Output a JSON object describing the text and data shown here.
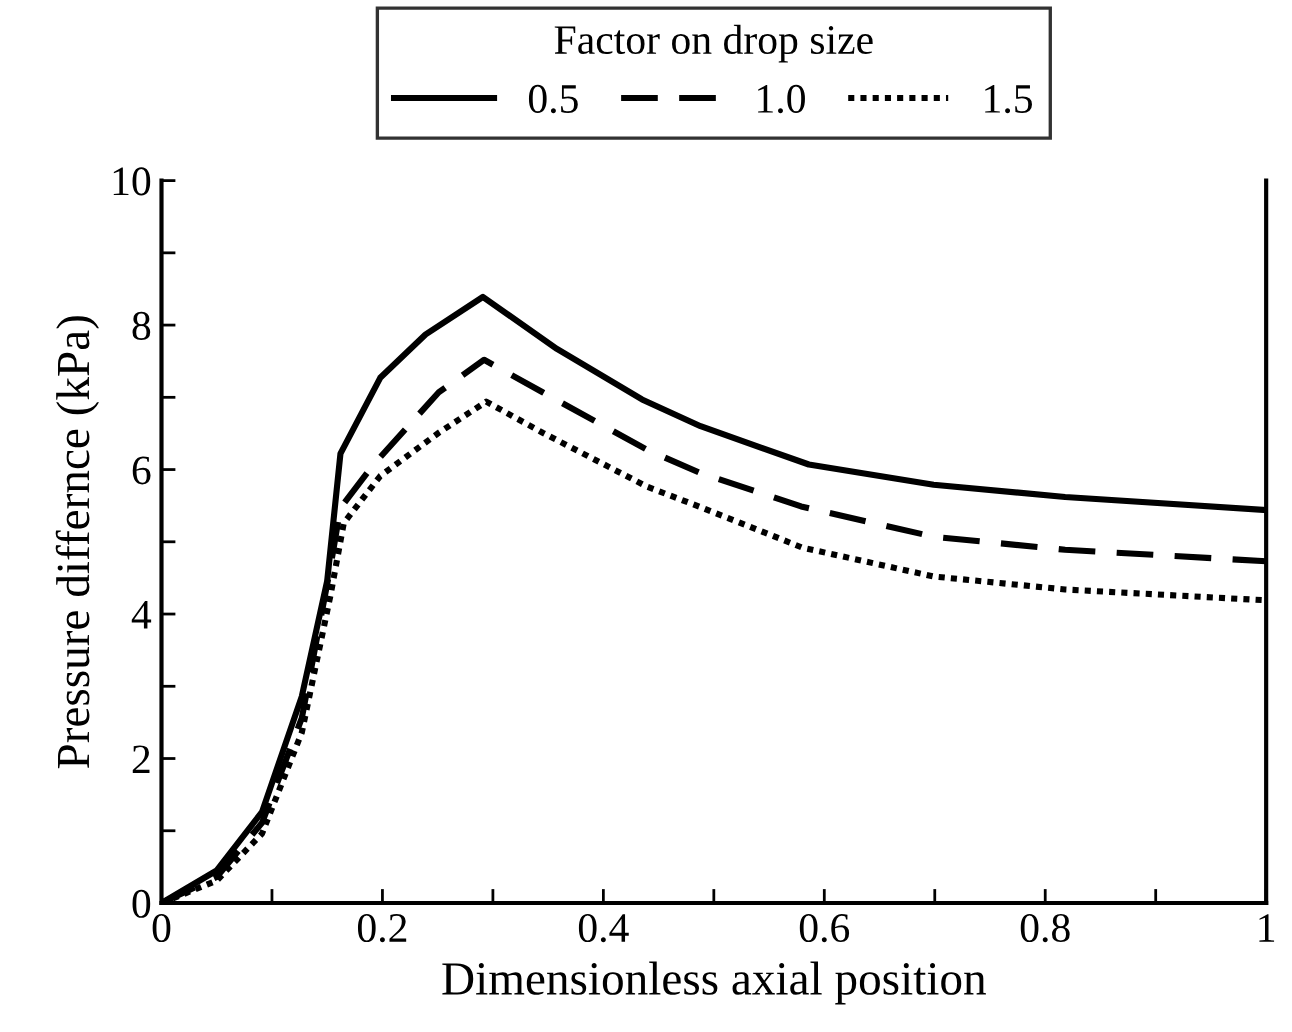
{
  "chart_data": {
    "type": "line",
    "xlabel": "Dimensionless axial position",
    "ylabel": "Pressure differnce (kPa)",
    "legend_title": "Factor on drop size",
    "legend": "top",
    "grid": false,
    "xlim": [
      0,
      1
    ],
    "xticks": [
      0,
      {
        "value": 0.1,
        "label": null
      },
      0.2,
      {
        "value": 0.3,
        "label": null
      },
      0.4,
      {
        "value": 0.5,
        "label": null
      },
      0.6,
      {
        "value": 0.7,
        "label": null
      },
      0.8,
      {
        "value": 0.9,
        "label": null
      },
      1
    ],
    "ylim": [
      0,
      10
    ],
    "yticks": [
      0,
      {
        "value": 1,
        "label": null
      },
      2,
      {
        "value": 3,
        "label": null
      },
      4,
      {
        "value": 5,
        "label": null
      },
      6,
      {
        "value": 7,
        "label": null
      },
      8,
      {
        "value": 9,
        "label": null
      },
      10
    ],
    "series": [
      {
        "name": "0.5",
        "color": "#000000",
        "line_style": "solid",
        "x": [
          0,
          0.05,
          0.091,
          0.127,
          0.15,
          0.162,
          0.198,
          0.239,
          0.291,
          0.358,
          0.435,
          0.488,
          0.586,
          0.699,
          0.818,
          1.0
        ],
        "values": [
          0,
          0.45,
          1.26,
          2.86,
          4.46,
          6.22,
          7.27,
          7.87,
          8.39,
          7.67,
          6.97,
          6.6,
          6.07,
          5.79,
          5.62,
          5.44
        ]
      },
      {
        "name": "1.0",
        "color": "#000000",
        "line_style": "dashed",
        "x": [
          0,
          0.05,
          0.091,
          0.127,
          0.153,
          0.162,
          0.192,
          0.251,
          0.292,
          0.345,
          0.44,
          0.488,
          0.579,
          0.699,
          0.818,
          1.0
        ],
        "values": [
          0,
          0.36,
          1.11,
          2.56,
          4.66,
          5.47,
          6.07,
          7.07,
          7.52,
          7.07,
          6.27,
          5.95,
          5.49,
          5.07,
          4.89,
          4.73
        ]
      },
      {
        "name": "1.5",
        "color": "#000000",
        "line_style": "dotted",
        "x": [
          0,
          0.05,
          0.091,
          0.127,
          0.153,
          0.165,
          0.198,
          0.251,
          0.294,
          0.345,
          0.44,
          0.488,
          0.58,
          0.699,
          0.818,
          1.0
        ],
        "values": [
          0,
          0.31,
          0.96,
          2.36,
          4.26,
          5.26,
          5.91,
          6.51,
          6.94,
          6.51,
          5.76,
          5.48,
          4.92,
          4.52,
          4.34,
          4.19
        ]
      }
    ]
  }
}
